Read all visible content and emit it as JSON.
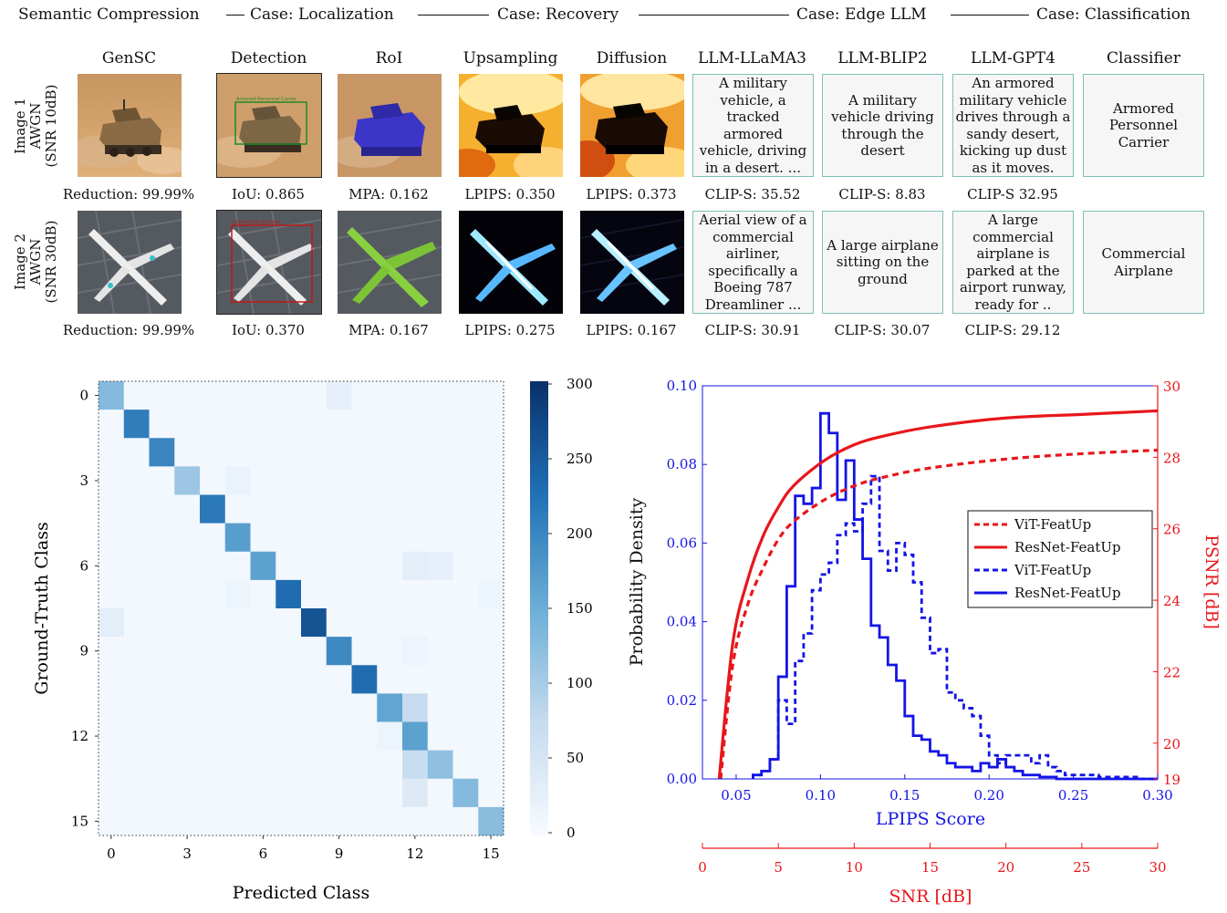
{
  "pipeline": {
    "stages": [
      {
        "label": "Semantic Compression"
      },
      {
        "label": "Case: Localization"
      },
      {
        "label": "Case: Recovery"
      },
      {
        "label": "Case: Edge LLM"
      },
      {
        "label": "Case: Classification"
      }
    ],
    "columns": [
      "GenSC",
      "Detection",
      "RoI",
      "Upsampling",
      "Diffusion",
      "LLM-LLaMA3",
      "LLM-BLIP2",
      "LLM-GPT4",
      "Classifier"
    ],
    "rows": [
      {
        "label_lines": [
          "Image 1",
          "AWGN",
          "(SNR 10dB)"
        ],
        "detection_box_label": "Armored Personnel Carrier",
        "captions": {
          "llama3": "A military vehicle, a tracked armored vehicle, driving in a desert. ...",
          "blip2": "A military vehicle driving through the desert",
          "gpt4": "An armored military vehicle drives through a sandy desert, kicking up dust as it moves.",
          "classifier": "Armored Personnel Carrier"
        },
        "metrics": [
          "Reduction: 99.99%",
          "IoU: 0.865",
          "MPA: 0.162",
          "LPIPS: 0.350",
          "LPIPS: 0.373",
          "CLIP-S: 35.52",
          "CLIP-S: 8.83",
          "CLIP-S 32.95"
        ]
      },
      {
        "label_lines": [
          "Image 2",
          "AWGN",
          "(SNR 30dB)"
        ],
        "detection_box_label": "Commercial Airplane",
        "captions": {
          "llama3": "Aerial view of a commercial airliner, specifically a Boeing 787 Dreamliner ...",
          "blip2": "A large airplane sitting on the ground",
          "gpt4": "A large commercial airplane is parked at the airport runway, ready for ..",
          "classifier": "Commercial Airplane"
        },
        "metrics": [
          "Reduction: 99.99%",
          "IoU: 0.370",
          "MPA: 0.167",
          "LPIPS: 0.275",
          "LPIPS: 0.167",
          "CLIP-S: 30.91",
          "CLIP-S: 30.07",
          "CLIP-S: 29.12"
        ]
      }
    ]
  },
  "chart_data": [
    {
      "type": "heatmap",
      "xlabel": "Predicted Class",
      "ylabel": "Ground-Truth Class",
      "x_ticks": [
        0,
        3,
        6,
        9,
        12,
        15
      ],
      "y_ticks": [
        0,
        3,
        6,
        9,
        12,
        15
      ],
      "colorbar": {
        "min": 0,
        "max": 300,
        "ticks": [
          0,
          50,
          100,
          150,
          200,
          250,
          300
        ]
      },
      "diagonal": [
        130,
        210,
        200,
        110,
        215,
        170,
        165,
        230,
        260,
        195,
        230,
        160,
        165,
        120,
        130,
        125
      ],
      "off_diagonal": [
        {
          "row": 0,
          "col": 9,
          "value": 25
        },
        {
          "row": 3,
          "col": 5,
          "value": 20
        },
        {
          "row": 6,
          "col": 12,
          "value": 30
        },
        {
          "row": 6,
          "col": 13,
          "value": 25
        },
        {
          "row": 7,
          "col": 5,
          "value": 15
        },
        {
          "row": 7,
          "col": 15,
          "value": 15
        },
        {
          "row": 8,
          "col": 0,
          "value": 30
        },
        {
          "row": 9,
          "col": 12,
          "value": 15
        },
        {
          "row": 11,
          "col": 12,
          "value": 75
        },
        {
          "row": 12,
          "col": 11,
          "value": 15
        },
        {
          "row": 13,
          "col": 12,
          "value": 70
        },
        {
          "row": 14,
          "col": 12,
          "value": 40
        }
      ],
      "background_value": 8
    },
    {
      "type": "line",
      "xlabel": "LPIPS Score",
      "ylabel": "Probability Density",
      "y2label": "PSNR [dB]",
      "x2label": "SNR [dB]",
      "xlim": [
        0.03,
        0.3
      ],
      "ylim": [
        0,
        0.1
      ],
      "y2lim": [
        19,
        30
      ],
      "x2lim": [
        0,
        30
      ],
      "x_ticks": [
        0.05,
        0.1,
        0.15,
        0.2,
        0.25,
        0.3
      ],
      "y_ticks": [
        0.0,
        0.02,
        0.04,
        0.06,
        0.08,
        0.1
      ],
      "y2_ticks": [
        19,
        20,
        22,
        24,
        26,
        28,
        30
      ],
      "x2_ticks": [
        0,
        5,
        10,
        15,
        20,
        25,
        30
      ],
      "legend_position": "center-right",
      "psnr_curves": [
        {
          "name": "ViT-FeatUp",
          "style": "dashed",
          "color": "#e8161b",
          "snr": [
            1.2,
            2,
            3,
            4,
            5,
            6,
            8,
            10,
            12,
            15,
            20,
            25,
            30
          ],
          "psnr": [
            19.0,
            22.2,
            23.9,
            24.9,
            25.7,
            26.2,
            26.8,
            27.2,
            27.45,
            27.7,
            27.95,
            28.1,
            28.2
          ]
        },
        {
          "name": "ResNet-FeatUp",
          "style": "solid",
          "color": "#e8161b",
          "snr": [
            1.1,
            2,
            3,
            4,
            5,
            6,
            8,
            10,
            12,
            15,
            20,
            25,
            30
          ],
          "psnr": [
            19.0,
            22.8,
            24.6,
            25.8,
            26.6,
            27.2,
            27.9,
            28.35,
            28.6,
            28.85,
            29.1,
            29.2,
            29.3
          ]
        }
      ],
      "histograms": [
        {
          "name": "ViT-FeatUp",
          "style": "dashed",
          "color": "#1414e6",
          "edges": [
            0.06,
            0.065,
            0.07,
            0.075,
            0.08,
            0.085,
            0.09,
            0.095,
            0.1,
            0.105,
            0.11,
            0.115,
            0.12,
            0.125,
            0.13,
            0.135,
            0.14,
            0.145,
            0.15,
            0.155,
            0.16,
            0.165,
            0.17,
            0.175,
            0.18,
            0.185,
            0.19,
            0.195,
            0.2,
            0.205,
            0.21,
            0.215,
            0.22,
            0.225,
            0.23,
            0.235,
            0.24,
            0.245,
            0.25,
            0.255,
            0.26,
            0.265,
            0.27,
            0.275,
            0.28,
            0.285,
            0.29
          ],
          "density": [
            0.001,
            0.002,
            0.005,
            0.02,
            0.014,
            0.03,
            0.037,
            0.048,
            0.052,
            0.055,
            0.062,
            0.065,
            0.063,
            0.07,
            0.077,
            0.058,
            0.053,
            0.06,
            0.057,
            0.05,
            0.041,
            0.032,
            0.033,
            0.022,
            0.02,
            0.018,
            0.016,
            0.011,
            0.006,
            0.004,
            0.006,
            0.006,
            0.006,
            0.004,
            0.006,
            0.003,
            0.002,
            0.001,
            0.001,
            0.001,
            0.001,
            0.0005,
            0.0005,
            0.0005,
            0.0005,
            0.0005
          ]
        },
        {
          "name": "ResNet-FeatUp",
          "style": "solid",
          "color": "#1414e6",
          "edges": [
            0.06,
            0.065,
            0.07,
            0.075,
            0.08,
            0.085,
            0.09,
            0.095,
            0.1,
            0.105,
            0.11,
            0.115,
            0.12,
            0.125,
            0.13,
            0.135,
            0.14,
            0.145,
            0.15,
            0.155,
            0.16,
            0.165,
            0.17,
            0.175,
            0.18,
            0.185,
            0.19,
            0.195,
            0.2,
            0.205,
            0.21,
            0.215,
            0.22,
            0.225,
            0.23,
            0.235,
            0.24
          ],
          "density": [
            0.001,
            0.002,
            0.005,
            0.026,
            0.049,
            0.072,
            0.07,
            0.074,
            0.093,
            0.088,
            0.071,
            0.081,
            0.066,
            0.056,
            0.039,
            0.036,
            0.029,
            0.025,
            0.016,
            0.011,
            0.01,
            0.007,
            0.006,
            0.004,
            0.003,
            0.003,
            0.002,
            0.004,
            0.003,
            0.005,
            0.003,
            0.002,
            0.001,
            0.001,
            0.0005,
            0.0005
          ]
        }
      ],
      "legend": [
        {
          "label": "ViT-FeatUp",
          "style": "dashed",
          "color": "#e8161b"
        },
        {
          "label": "ResNet-FeatUp",
          "style": "solid",
          "color": "#e8161b"
        },
        {
          "label": "ViT-FeatUp",
          "style": "dashed",
          "color": "#1414e6"
        },
        {
          "label": "ResNet-FeatUp",
          "style": "solid",
          "color": "#1414e6"
        }
      ]
    }
  ]
}
